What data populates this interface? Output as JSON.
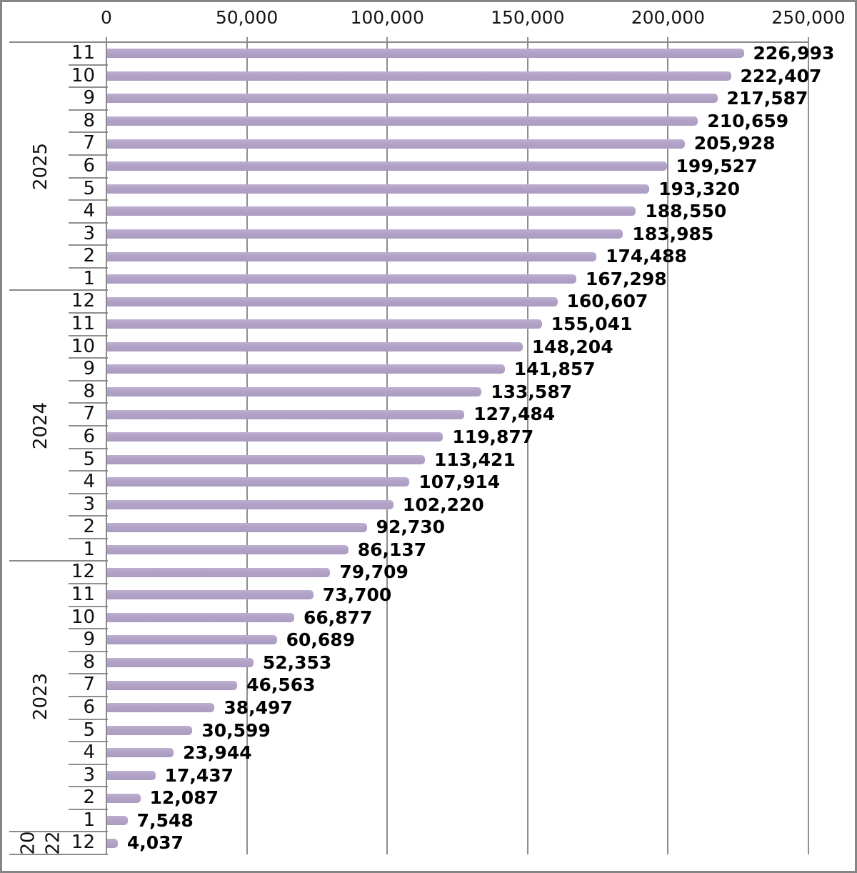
{
  "chart_data": {
    "type": "bar",
    "orientation": "horizontal",
    "title": "",
    "bar_color": "#b2a2c7",
    "grid": true,
    "value_axis": {
      "position": "top",
      "min": 0,
      "max": 250000,
      "ticks": [
        {
          "value": 0,
          "label": "0"
        },
        {
          "value": 50000,
          "label": "50,000"
        },
        {
          "value": 100000,
          "label": "100,000"
        },
        {
          "value": 150000,
          "label": "150,000"
        },
        {
          "value": 200000,
          "label": "200,000"
        },
        {
          "value": 250000,
          "label": "250,000"
        }
      ]
    },
    "category_axis": {
      "position": "left",
      "levels": [
        "year",
        "month"
      ]
    },
    "groups": [
      {
        "year": "2025",
        "rows": [
          {
            "month": "11",
            "value": 226993,
            "label": "226,993"
          },
          {
            "month": "10",
            "value": 222407,
            "label": "222,407"
          },
          {
            "month": "9",
            "value": 217587,
            "label": "217,587"
          },
          {
            "month": "8",
            "value": 210659,
            "label": "210,659"
          },
          {
            "month": "7",
            "value": 205928,
            "label": "205,928"
          },
          {
            "month": "6",
            "value": 199527,
            "label": "199,527"
          },
          {
            "month": "5",
            "value": 193320,
            "label": "193,320"
          },
          {
            "month": "4",
            "value": 188550,
            "label": "188,550"
          },
          {
            "month": "3",
            "value": 183985,
            "label": "183,985"
          },
          {
            "month": "2",
            "value": 174488,
            "label": "174,488"
          },
          {
            "month": "1",
            "value": 167298,
            "label": "167,298"
          }
        ]
      },
      {
        "year": "2024",
        "rows": [
          {
            "month": "12",
            "value": 160607,
            "label": "160,607"
          },
          {
            "month": "11",
            "value": 155041,
            "label": "155,041"
          },
          {
            "month": "10",
            "value": 148204,
            "label": "148,204"
          },
          {
            "month": "9",
            "value": 141857,
            "label": "141,857"
          },
          {
            "month": "8",
            "value": 133587,
            "label": "133,587"
          },
          {
            "month": "7",
            "value": 127484,
            "label": "127,484"
          },
          {
            "month": "6",
            "value": 119877,
            "label": "119,877"
          },
          {
            "month": "5",
            "value": 113421,
            "label": "113,421"
          },
          {
            "month": "4",
            "value": 107914,
            "label": "107,914"
          },
          {
            "month": "3",
            "value": 102220,
            "label": "102,220"
          },
          {
            "month": "2",
            "value": 92730,
            "label": "92,730"
          },
          {
            "month": "1",
            "value": 86137,
            "label": "86,137"
          }
        ]
      },
      {
        "year": "2023",
        "rows": [
          {
            "month": "12",
            "value": 79709,
            "label": "79,709"
          },
          {
            "month": "11",
            "value": 73700,
            "label": "73,700"
          },
          {
            "month": "10",
            "value": 66877,
            "label": "66,877"
          },
          {
            "month": "9",
            "value": 60689,
            "label": "60,689"
          },
          {
            "month": "8",
            "value": 52353,
            "label": "52,353"
          },
          {
            "month": "7",
            "value": 46563,
            "label": "46,563"
          },
          {
            "month": "6",
            "value": 38497,
            "label": "38,497"
          },
          {
            "month": "5",
            "value": 30599,
            "label": "30,599"
          },
          {
            "month": "4",
            "value": 23944,
            "label": "23,944"
          },
          {
            "month": "3",
            "value": 17437,
            "label": "17,437"
          },
          {
            "month": "2",
            "value": 12087,
            "label": "12,087"
          },
          {
            "month": "1",
            "value": 7548,
            "label": "7,548"
          }
        ]
      },
      {
        "year": "2022",
        "year_display_split": [
          "20",
          "22"
        ],
        "rows": [
          {
            "month": "12",
            "value": 4037,
            "label": "4,037"
          }
        ]
      }
    ]
  }
}
